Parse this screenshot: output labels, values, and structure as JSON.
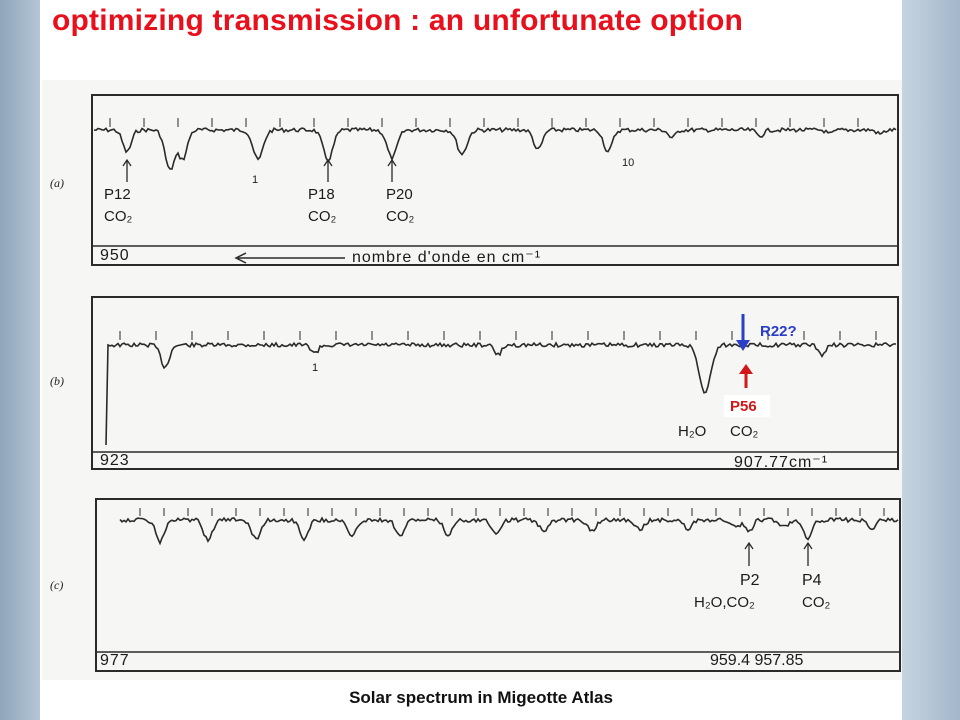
{
  "slide": {
    "title": "optimizing transmission : an unfortunate option",
    "caption": "Solar spectrum in Migeotte Atlas"
  },
  "panels": {
    "a": {
      "label": "(a)",
      "axis_left": "950",
      "axis_text": "nombre   d'onde en   cm⁻¹",
      "marks": [
        {
          "line": "P12",
          "molecule": "CO₂"
        },
        {
          "line": "P18",
          "molecule": "CO₂"
        },
        {
          "line": "P20",
          "molecule": "CO₂"
        }
      ],
      "tick_labels": [
        "1",
        "10"
      ]
    },
    "b": {
      "label": "(b)",
      "axis_left": "923",
      "axis_right": "907.77cm⁻¹",
      "h2o": "H₂O",
      "co2": "CO₂",
      "p56": "P56",
      "r22": "R22?",
      "tick_label": "1"
    },
    "c": {
      "label": "(c)",
      "axis_left": "977",
      "axis_right": "959.4  957.85",
      "marks": [
        {
          "line": "P2",
          "molecule": "H₂O,CO₂"
        },
        {
          "line": "P4",
          "molecule": "CO₂"
        }
      ]
    }
  },
  "colors": {
    "title": "#e8101c",
    "annotation_red": "#d01818",
    "annotation_blue": "#2b3ec8"
  }
}
